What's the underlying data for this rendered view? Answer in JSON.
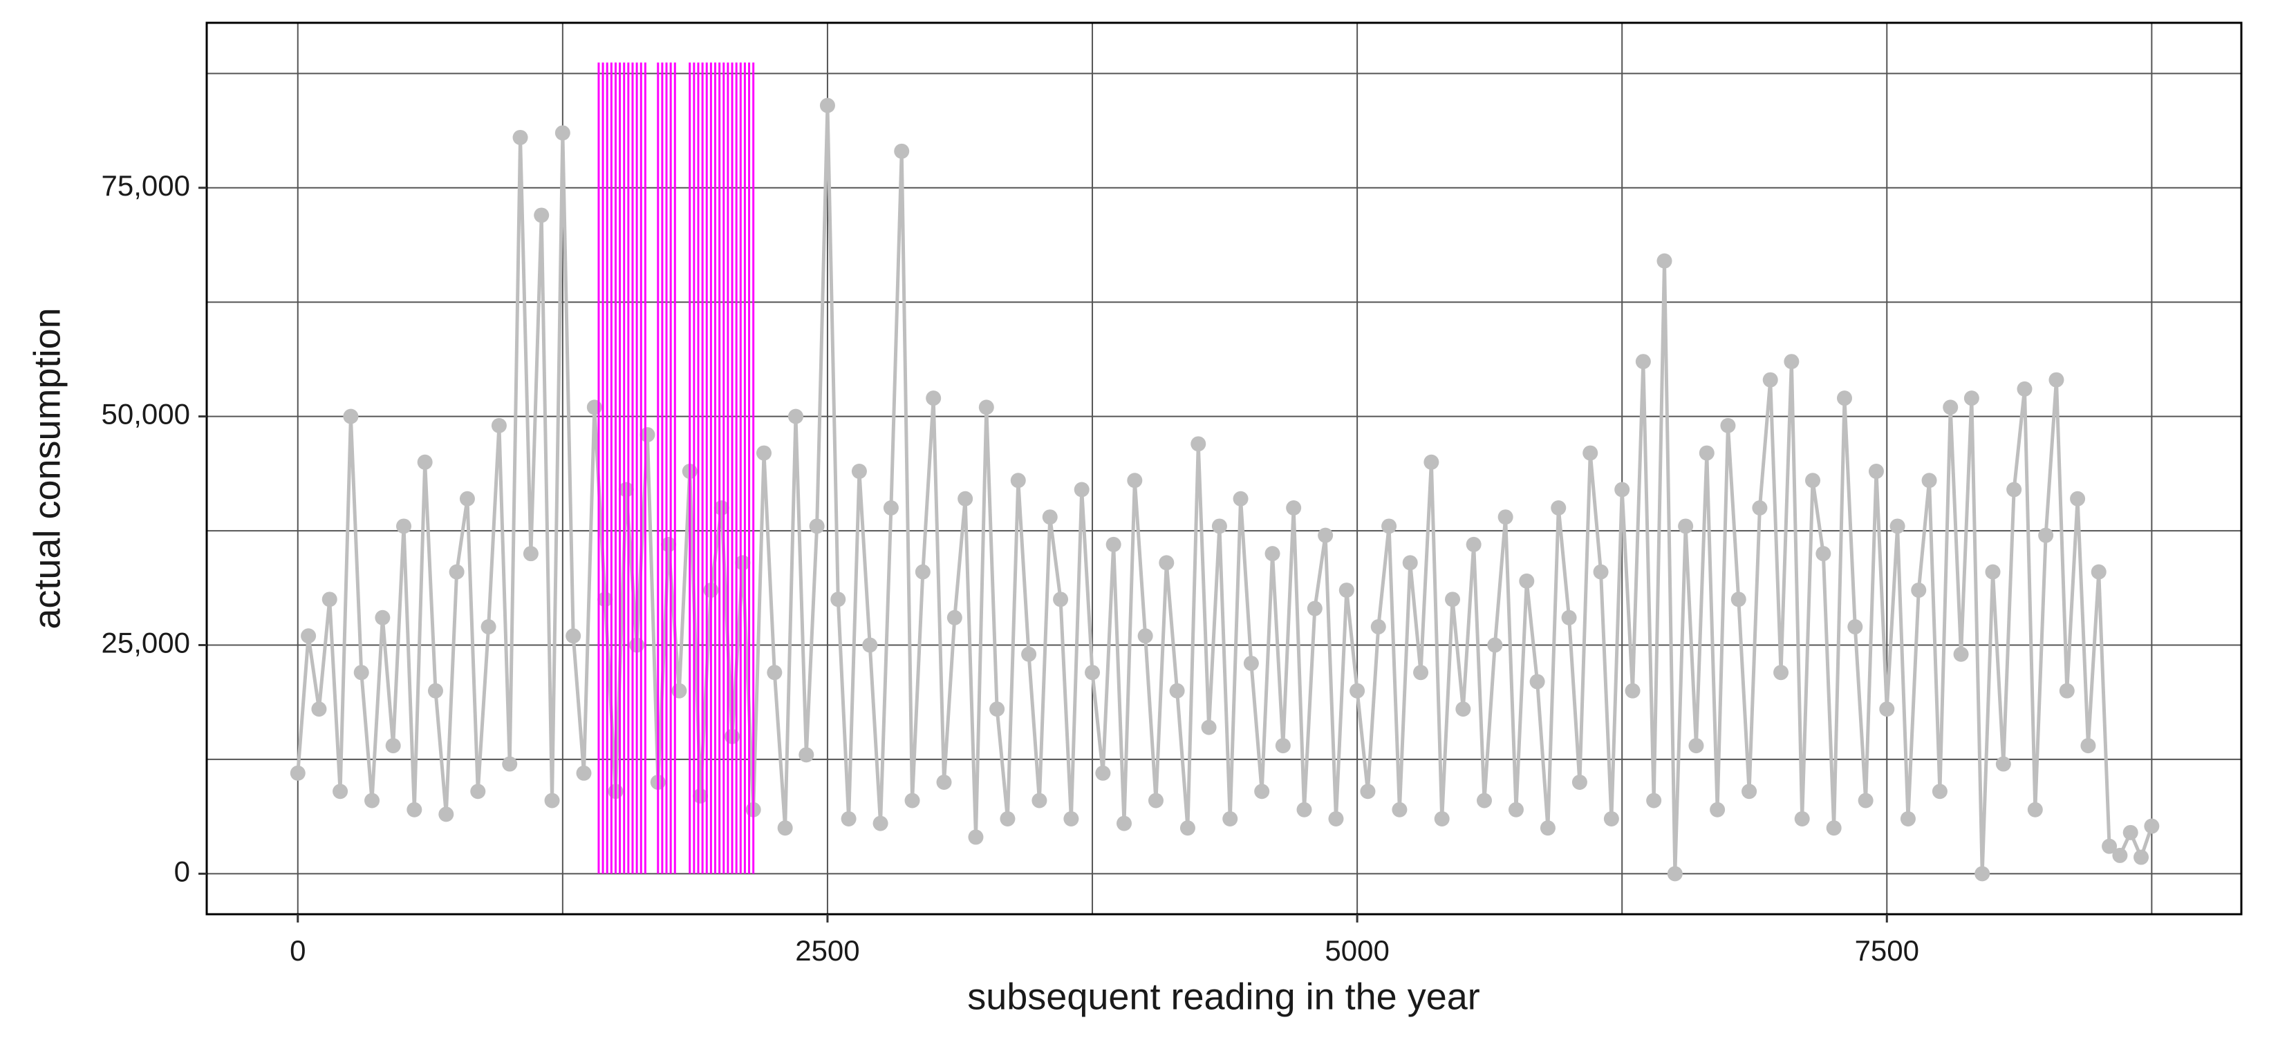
{
  "chart_data": {
    "type": "line",
    "xlabel": "subsequent reading in the year",
    "ylabel": "actual consumption",
    "xlim": [
      -430,
      9173
    ],
    "ylim": [
      -4430,
      93040
    ],
    "xticks": [
      0,
      2500,
      5000,
      7500
    ],
    "xminor": [
      1250,
      3750,
      6250,
      8750
    ],
    "yticks": [
      0,
      {
        "value": 25000,
        "label": "25,000"
      },
      {
        "value": 50000,
        "label": "50,000"
      },
      {
        "value": 75000,
        "label": "75,000"
      }
    ],
    "yminor": [
      12500,
      37500,
      62500,
      87500
    ],
    "grid": true,
    "highlight": {
      "color": "#ff00ff",
      "top": 88700,
      "bottom": 0,
      "x": [
        1420,
        1440,
        1460,
        1480,
        1500,
        1520,
        1540,
        1560,
        1580,
        1600,
        1620,
        1640,
        1700,
        1720,
        1740,
        1760,
        1780,
        1850,
        1870,
        1890,
        1910,
        1930,
        1950,
        1970,
        1990,
        2010,
        2030,
        2050,
        2070,
        2090,
        2110,
        2130,
        2150
      ]
    },
    "series": [
      {
        "color": "#bebebe",
        "x": [
          0,
          50,
          100,
          150,
          200,
          250,
          300,
          350,
          400,
          450,
          500,
          550,
          600,
          650,
          700,
          750,
          800,
          850,
          900,
          950,
          1000,
          1050,
          1100,
          1150,
          1200,
          1250,
          1300,
          1350,
          1400,
          1450,
          1500,
          1550,
          1600,
          1650,
          1700,
          1750,
          1800,
          1850,
          1900,
          1950,
          2000,
          2050,
          2100,
          2150,
          2200,
          2250,
          2300,
          2350,
          2400,
          2450,
          2500,
          2550,
          2600,
          2650,
          2700,
          2750,
          2800,
          2850,
          2900,
          2950,
          3000,
          3050,
          3100,
          3150,
          3200,
          3250,
          3300,
          3350,
          3400,
          3450,
          3500,
          3550,
          3600,
          3650,
          3700,
          3750,
          3800,
          3850,
          3900,
          3950,
          4000,
          4050,
          4100,
          4150,
          4200,
          4250,
          4300,
          4350,
          4400,
          4450,
          4500,
          4550,
          4600,
          4650,
          4700,
          4750,
          4800,
          4850,
          4900,
          4950,
          5000,
          5050,
          5100,
          5150,
          5200,
          5250,
          5300,
          5350,
          5400,
          5450,
          5500,
          5550,
          5600,
          5650,
          5700,
          5750,
          5800,
          5850,
          5900,
          5950,
          6000,
          6050,
          6100,
          6150,
          6200,
          6250,
          6300,
          6350,
          6400,
          6450,
          6500,
          6550,
          6600,
          6650,
          6700,
          6750,
          6800,
          6850,
          6900,
          6950,
          7000,
          7050,
          7100,
          7150,
          7200,
          7250,
          7300,
          7350,
          7400,
          7450,
          7500,
          7550,
          7600,
          7650,
          7700,
          7750,
          7800,
          7850,
          7900,
          7950,
          8000,
          8050,
          8100,
          8150,
          8200,
          8250,
          8300,
          8350,
          8400,
          8450,
          8500,
          8550,
          8600,
          8650,
          8700,
          8750
        ],
        "values": [
          11000,
          26000,
          18000,
          30000,
          9000,
          50000,
          22000,
          8000,
          28000,
          14000,
          38000,
          7000,
          45000,
          20000,
          6500,
          33000,
          41000,
          9000,
          27000,
          49000,
          12000,
          80500,
          35000,
          72000,
          8000,
          81000,
          26000,
          11000,
          51000,
          30000,
          9000,
          42000,
          25000,
          48000,
          10000,
          36000,
          20000,
          44000,
          8500,
          31000,
          40000,
          15000,
          34000,
          7000,
          46000,
          22000,
          5000,
          50000,
          13000,
          38000,
          84000,
          30000,
          6000,
          44000,
          25000,
          5500,
          40000,
          79000,
          8000,
          33000,
          52000,
          10000,
          28000,
          41000,
          4000,
          51000,
          18000,
          6000,
          43000,
          24000,
          8000,
          39000,
          30000,
          6000,
          42000,
          22000,
          11000,
          36000,
          5500,
          43000,
          26000,
          8000,
          34000,
          20000,
          5000,
          47000,
          16000,
          38000,
          6000,
          41000,
          23000,
          9000,
          35000,
          14000,
          40000,
          7000,
          29000,
          37000,
          6000,
          31000,
          20000,
          9000,
          27000,
          38000,
          7000,
          34000,
          22000,
          45000,
          6000,
          30000,
          18000,
          36000,
          8000,
          25000,
          39000,
          7000,
          32000,
          21000,
          5000,
          40000,
          28000,
          10000,
          46000,
          33000,
          6000,
          42000,
          20000,
          56000,
          8000,
          67000,
          0,
          38000,
          14000,
          46000,
          7000,
          49000,
          30000,
          9000,
          40000,
          54000,
          22000,
          56000,
          6000,
          43000,
          35000,
          5000,
          52000,
          27000,
          8000,
          44000,
          18000,
          38000,
          6000,
          31000,
          43000,
          9000,
          51000,
          24000,
          52000,
          0,
          33000,
          12000,
          42000,
          53000,
          7000,
          37000,
          54000,
          20000,
          41000,
          14000,
          33000,
          3000,
          2000,
          4500,
          1800,
          5200
        ]
      }
    ]
  }
}
